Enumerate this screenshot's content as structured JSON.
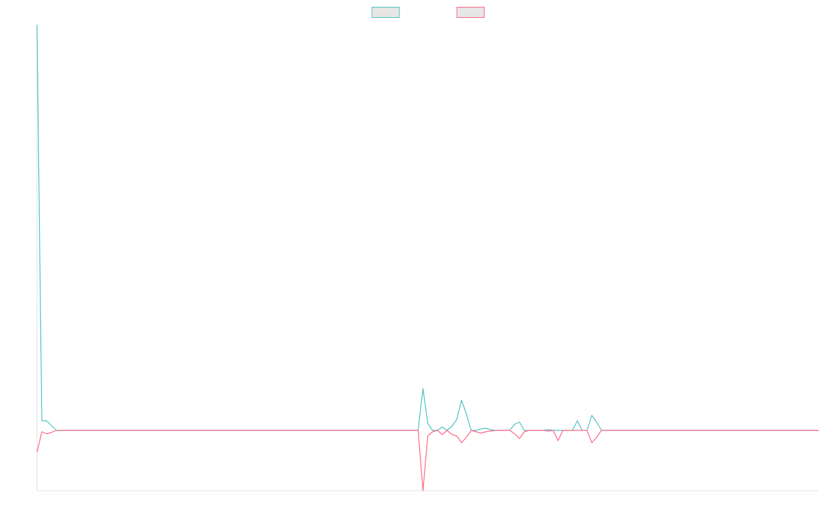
{
  "chart_data": {
    "type": "line",
    "categories": [
      null,
      null,
      null,
      null,
      null,
      null,
      null,
      null,
      null,
      null,
      null,
      null,
      null,
      null,
      null,
      null,
      null,
      null,
      null,
      null,
      null,
      null,
      null,
      null,
      null,
      null,
      null,
      null,
      null,
      null,
      null,
      null,
      null,
      null,
      null,
      null,
      null,
      null,
      null,
      null,
      null,
      null,
      null,
      null,
      null,
      null,
      null,
      null,
      null,
      null,
      null,
      null,
      null,
      null,
      null,
      null,
      null,
      null,
      null,
      null,
      null,
      null,
      null,
      null,
      null,
      null,
      null,
      null,
      null,
      null,
      null,
      null,
      null,
      null,
      null,
      null,
      null,
      null,
      null,
      null,
      null,
      null,
      null,
      null,
      null,
      null,
      null,
      null,
      null,
      null,
      null,
      null,
      null,
      null,
      null,
      null,
      null,
      null,
      null,
      null,
      null,
      null,
      null,
      null,
      null,
      null,
      null,
      null,
      null,
      null,
      null,
      null,
      null,
      null,
      null,
      null,
      null,
      null,
      null,
      null,
      null,
      null,
      null,
      null,
      null,
      null,
      null,
      null,
      null,
      null,
      null,
      null,
      null,
      null,
      null,
      null,
      null,
      null,
      null,
      null,
      null,
      null,
      null,
      null,
      null,
      null,
      null,
      null,
      null,
      null,
      null,
      null,
      null,
      null,
      null,
      null,
      null,
      null,
      null,
      null,
      null,
      null,
      null
    ],
    "series": [
      {
        "color": "#4bc0c0",
        "values": [
          592,
          14,
          14,
          7,
          0,
          0,
          0,
          0,
          0,
          0,
          0,
          0,
          0,
          0,
          0,
          0,
          0,
          0,
          0,
          0,
          0,
          0,
          0,
          0,
          0,
          0,
          0,
          0,
          0,
          0,
          0,
          0,
          0,
          0,
          0,
          0,
          0,
          0,
          0,
          0,
          0,
          0,
          0,
          0,
          0,
          0,
          0,
          0,
          0,
          0,
          0,
          0,
          0,
          0,
          0,
          0,
          0,
          0,
          0,
          0,
          0,
          0,
          0,
          0,
          0,
          0,
          0,
          0,
          0,
          0,
          0,
          0,
          0,
          0,
          0,
          0,
          0,
          0,
          0,
          0,
          61,
          10,
          0,
          0,
          5,
          0,
          6,
          16,
          44,
          24,
          0,
          0,
          2,
          3,
          1,
          0,
          0,
          0,
          0,
          9,
          12,
          0,
          0,
          0,
          0,
          0,
          1,
          0,
          0,
          0,
          0,
          0,
          14,
          0,
          0,
          22,
          12,
          0,
          0,
          0,
          0,
          0,
          0,
          0,
          0,
          0,
          0,
          0,
          0,
          0,
          0,
          0,
          0,
          0,
          0,
          0,
          0,
          0,
          0,
          0,
          0,
          0,
          0,
          0,
          0,
          0,
          0,
          0,
          0,
          0,
          0,
          0,
          0,
          0,
          0,
          0,
          0,
          0,
          0,
          0,
          0,
          0,
          0
        ]
      },
      {
        "color": "#ff6384",
        "values": [
          -32,
          -2,
          -5,
          -3,
          0,
          0,
          0,
          0,
          0,
          0,
          0,
          0,
          0,
          0,
          0,
          0,
          0,
          0,
          0,
          0,
          0,
          0,
          0,
          0,
          0,
          0,
          0,
          0,
          0,
          0,
          0,
          0,
          0,
          0,
          0,
          0,
          0,
          0,
          0,
          0,
          0,
          0,
          0,
          0,
          0,
          0,
          0,
          0,
          0,
          0,
          0,
          0,
          0,
          0,
          0,
          0,
          0,
          0,
          0,
          0,
          0,
          0,
          0,
          0,
          0,
          0,
          0,
          0,
          0,
          0,
          0,
          0,
          0,
          0,
          0,
          0,
          0,
          0,
          0,
          0,
          -88,
          -8,
          -2,
          0,
          -6,
          0,
          -6,
          -8,
          -18,
          -10,
          0,
          -2,
          -4,
          -2,
          -1,
          0,
          0,
          0,
          0,
          -5,
          -12,
          -2,
          0,
          0,
          0,
          0,
          -1,
          0,
          -15,
          0,
          0,
          0,
          0,
          0,
          0,
          -18,
          -10,
          0,
          0,
          0,
          0,
          0,
          0,
          0,
          0,
          0,
          0,
          0,
          0,
          0,
          0,
          0,
          0,
          0,
          0,
          0,
          0,
          0,
          0,
          0,
          0,
          0,
          0,
          0,
          0,
          0,
          0,
          0,
          0,
          0,
          0,
          0,
          0,
          0,
          0,
          0,
          0,
          0,
          0,
          0,
          0,
          0,
          0
        ]
      }
    ],
    "ylim": [
      -88,
      592
    ],
    "grid": false,
    "legend": "top"
  }
}
